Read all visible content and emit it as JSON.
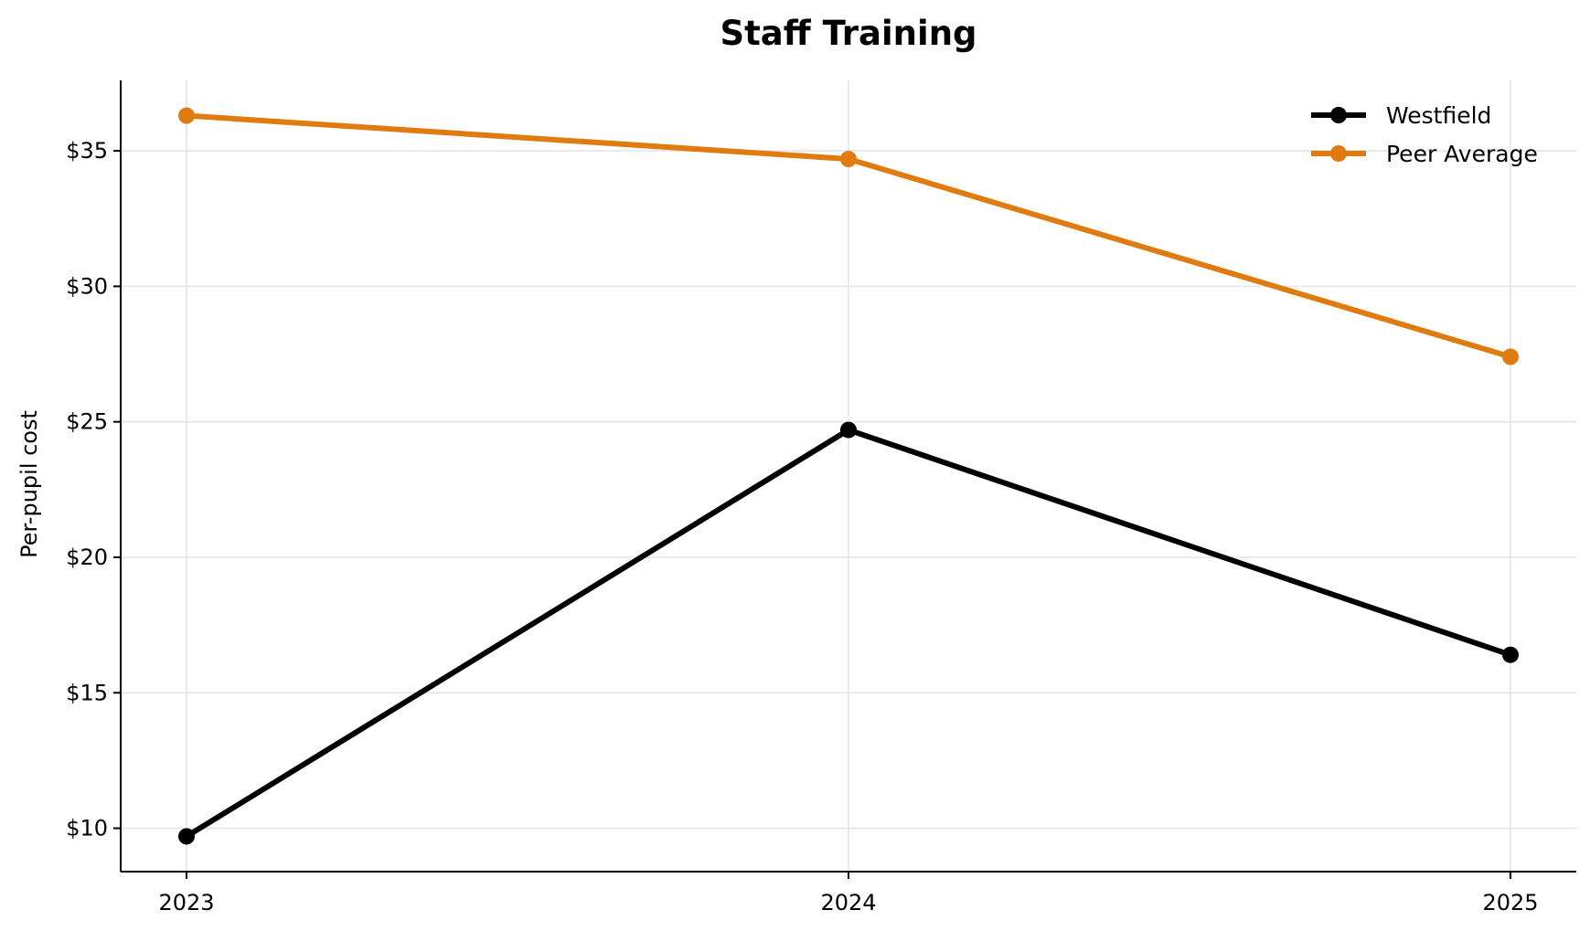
{
  "chart_data": {
    "type": "line",
    "title": "Staff Training",
    "xlabel": "",
    "ylabel": "Per-pupil cost",
    "categories": [
      "2023",
      "2024",
      "2025"
    ],
    "series": [
      {
        "name": "Westfield",
        "values": [
          9.7,
          24.7,
          16.4
        ],
        "color": "#000000"
      },
      {
        "name": "Peer Average",
        "values": [
          36.3,
          34.7,
          27.4
        ],
        "color": "#e07b10"
      }
    ],
    "ylim": [
      8.4,
      37.6
    ],
    "yticks": [
      10,
      15,
      20,
      25,
      30,
      35
    ],
    "ytick_labels": [
      "$10",
      "$15",
      "$20",
      "$25",
      "$30",
      "$35"
    ],
    "grid": true,
    "legend_position": "top-right"
  }
}
